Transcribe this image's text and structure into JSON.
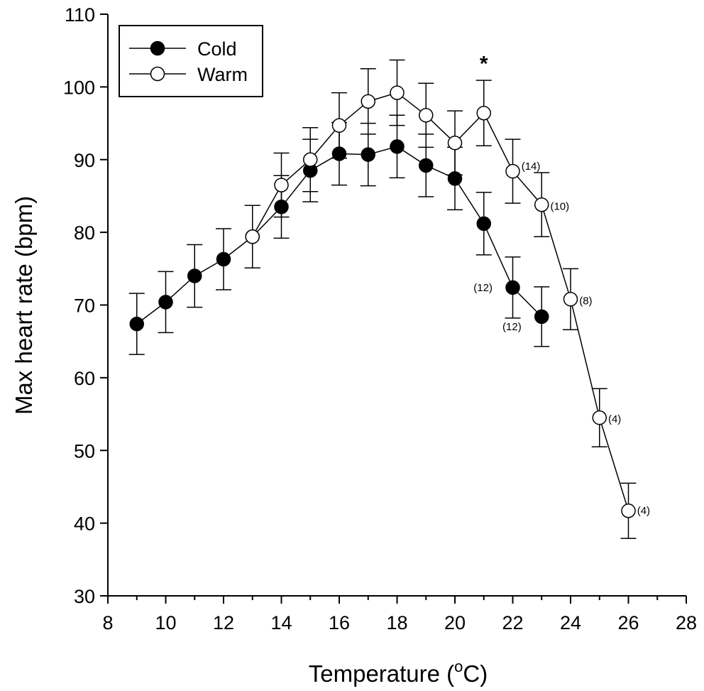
{
  "chart_data": {
    "type": "line",
    "xlabel": "Temperature (",
    "xlabel_sup": "o",
    "xlabel_tail": "C)",
    "ylabel": "Max heart rate (bpm)",
    "xlim": [
      8,
      28
    ],
    "ylim": [
      30,
      110
    ],
    "x_major_ticks": [
      8,
      10,
      12,
      14,
      16,
      18,
      20,
      22,
      24,
      26,
      28
    ],
    "x_minor_ticks": [
      9,
      11,
      13,
      15,
      17,
      19,
      21,
      23,
      25,
      27
    ],
    "y_major_ticks": [
      30,
      40,
      50,
      60,
      70,
      80,
      90,
      100,
      110
    ],
    "grid": false,
    "legend_position": "top-left",
    "series": [
      {
        "name": "Cold",
        "marker": "filled-circle",
        "color": "#000000",
        "x": [
          9,
          10,
          11,
          12,
          13,
          14,
          15,
          16,
          17,
          18,
          19,
          20,
          21,
          22,
          23
        ],
        "y": [
          67.4,
          70.4,
          74.0,
          76.3,
          79.4,
          83.5,
          88.5,
          90.8,
          90.7,
          91.8,
          89.2,
          87.4,
          81.2,
          72.4,
          68.4
        ],
        "err": [
          4.2,
          4.2,
          4.3,
          4.2,
          4.3,
          4.3,
          4.3,
          4.3,
          4.3,
          4.3,
          4.3,
          4.3,
          4.3,
          4.2,
          4.1
        ]
      },
      {
        "name": "Warm",
        "marker": "open-circle",
        "color": "#000000",
        "x": [
          13,
          14,
          15,
          16,
          17,
          18,
          19,
          20,
          21,
          22,
          23,
          24,
          25,
          26
        ],
        "y": [
          79.4,
          86.5,
          90.0,
          94.7,
          98.0,
          99.2,
          96.1,
          92.3,
          96.4,
          88.4,
          83.8,
          70.8,
          54.5,
          41.7
        ],
        "err": [
          4.3,
          4.4,
          4.4,
          4.5,
          4.5,
          4.5,
          4.4,
          4.4,
          4.5,
          4.4,
          4.4,
          4.2,
          4.0,
          3.8
        ]
      }
    ],
    "annotations": {
      "significance": [
        {
          "text": "*",
          "x": 21,
          "y": 102.8
        }
      ],
      "sample_sizes": [
        {
          "text": "(12)",
          "x": 21.3,
          "y": 72.4,
          "anchor": "end"
        },
        {
          "text": "(12)",
          "x": 22.3,
          "y": 67.0,
          "anchor": "end"
        },
        {
          "text": "(14)",
          "x": 22.3,
          "y": 89.1,
          "anchor": "start"
        },
        {
          "text": "(10)",
          "x": 23.3,
          "y": 83.6,
          "anchor": "start"
        },
        {
          "text": "(8)",
          "x": 24.3,
          "y": 70.6,
          "anchor": "start"
        },
        {
          "text": "(4)",
          "x": 25.3,
          "y": 54.3,
          "anchor": "start"
        },
        {
          "text": "(4)",
          "x": 26.3,
          "y": 41.7,
          "anchor": "start"
        }
      ]
    }
  }
}
